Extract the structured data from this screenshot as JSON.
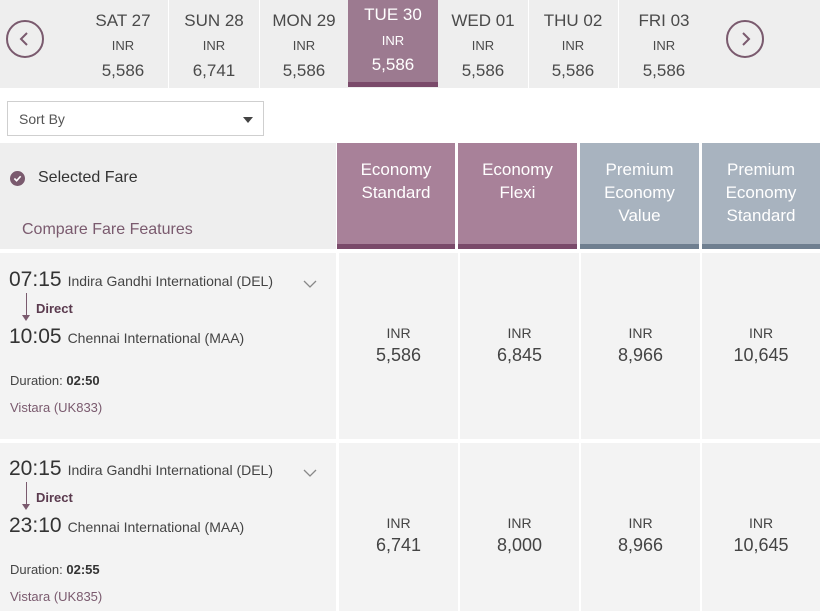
{
  "date_strip": {
    "days": [
      {
        "name": "SAT 27",
        "currency": "INR",
        "price": "5,586"
      },
      {
        "name": "SUN 28",
        "currency": "INR",
        "price": "6,741"
      },
      {
        "name": "MON 29",
        "currency": "INR",
        "price": "5,586"
      },
      {
        "name": "TUE 30",
        "currency": "INR",
        "price": "5,586",
        "selected": true
      },
      {
        "name": "WED 01",
        "currency": "INR",
        "price": "5,586"
      },
      {
        "name": "THU 02",
        "currency": "INR",
        "price": "5,586"
      },
      {
        "name": "FRI 03",
        "currency": "INR",
        "price": "5,586"
      }
    ],
    "prev_icon": "chevron-left-icon",
    "next_icon": "chevron-right-icon"
  },
  "sort": {
    "label": "Sort By"
  },
  "header": {
    "selected_fare": "Selected Fare",
    "compare_link": "Compare Fare Features",
    "fares": [
      {
        "line1": "Economy",
        "line2": "Standard",
        "line3": ""
      },
      {
        "line1": "Economy",
        "line2": "Flexi",
        "line3": ""
      },
      {
        "line1": "Premium",
        "line2": "Economy",
        "line3": "Value"
      },
      {
        "line1": "Premium",
        "line2": "Economy",
        "line3": "Standard"
      }
    ]
  },
  "flights": [
    {
      "dep_time": "07:15",
      "dep_airport": "Indira Gandhi International (DEL)",
      "stop": "Direct",
      "arr_time": "10:05",
      "arr_airport": "Chennai International (MAA)",
      "duration_label": "Duration:",
      "duration": "02:50",
      "carrier": "Vistara (UK833)",
      "prices": [
        {
          "currency": "INR",
          "value": "5,586"
        },
        {
          "currency": "INR",
          "value": "6,845"
        },
        {
          "currency": "INR",
          "value": "8,966"
        },
        {
          "currency": "INR",
          "value": "10,645"
        }
      ]
    },
    {
      "dep_time": "20:15",
      "dep_airport": "Indira Gandhi International (DEL)",
      "stop": "Direct",
      "arr_time": "23:10",
      "arr_airport": "Chennai International (MAA)",
      "duration_label": "Duration:",
      "duration": "02:55",
      "carrier": "Vistara (UK835)",
      "prices": [
        {
          "currency": "INR",
          "value": "6,741"
        },
        {
          "currency": "INR",
          "value": "8,000"
        },
        {
          "currency": "INR",
          "value": "8,966"
        },
        {
          "currency": "INR",
          "value": "10,645"
        }
      ]
    }
  ],
  "colors": {
    "accent": "#7a5a6e",
    "economy": "#a88199",
    "premium": "#a8b3bf"
  }
}
